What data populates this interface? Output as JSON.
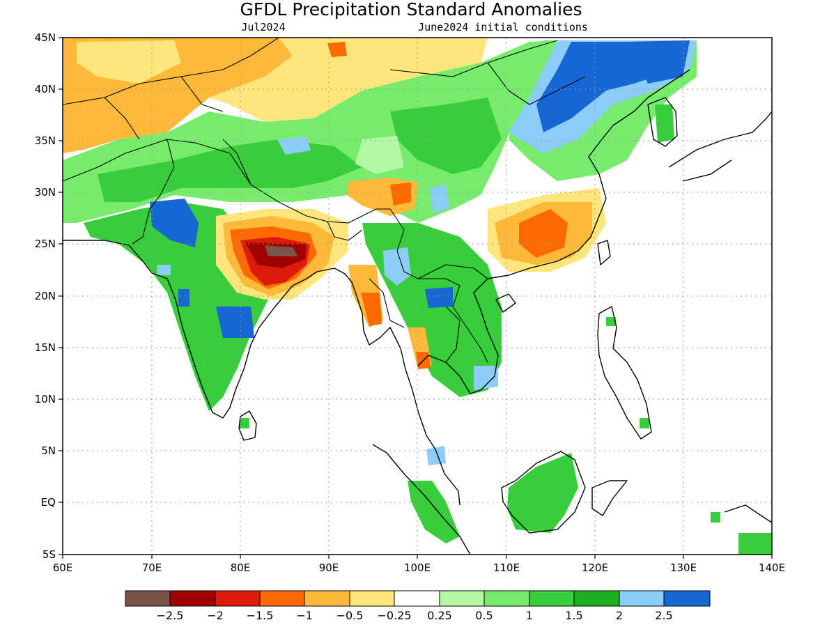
{
  "title": "GFDL Precipitation Standard Anomalies",
  "valid_month": "Jul2024",
  "initial_conditions": "June2024 initial conditions",
  "lat_labels": [
    "45N",
    "40N",
    "35N",
    "30N",
    "25N",
    "20N",
    "15N",
    "10N",
    "5N",
    "EQ",
    "5S"
  ],
  "lon_labels": [
    "60E",
    "70E",
    "80E",
    "90E",
    "100E",
    "110E",
    "120E",
    "130E",
    "140E"
  ],
  "colorbar": {
    "colors": [
      "#7b5449",
      "#a00000",
      "#dc1c0a",
      "#ff6a00",
      "#ffb93a",
      "#ffe57a",
      "#ffffff",
      "#b4f8a6",
      "#77ec6c",
      "#37cd3b",
      "#1eaf1e",
      "#8ccdf8",
      "#1666d3"
    ],
    "labels": [
      "−2.5",
      "−2",
      "−1.5",
      "−1",
      "−0.5",
      "−0.25",
      "0.25",
      "0.5",
      "1",
      "1.5",
      "2",
      "2.5"
    ]
  },
  "regions": {
    "c1": "#7b5449",
    "c2": "#a00000",
    "c3": "#dc1c0a",
    "c4": "#ff6a00",
    "c5": "#ffb93a",
    "c6": "#ffe57a",
    "c7": "#ffffff",
    "c8": "#b4f8a6",
    "c9": "#77ec6c",
    "c10": "#37cd3b",
    "c11": "#1eaf1e",
    "c12": "#8ccdf8",
    "c13": "#1666d3"
  }
}
